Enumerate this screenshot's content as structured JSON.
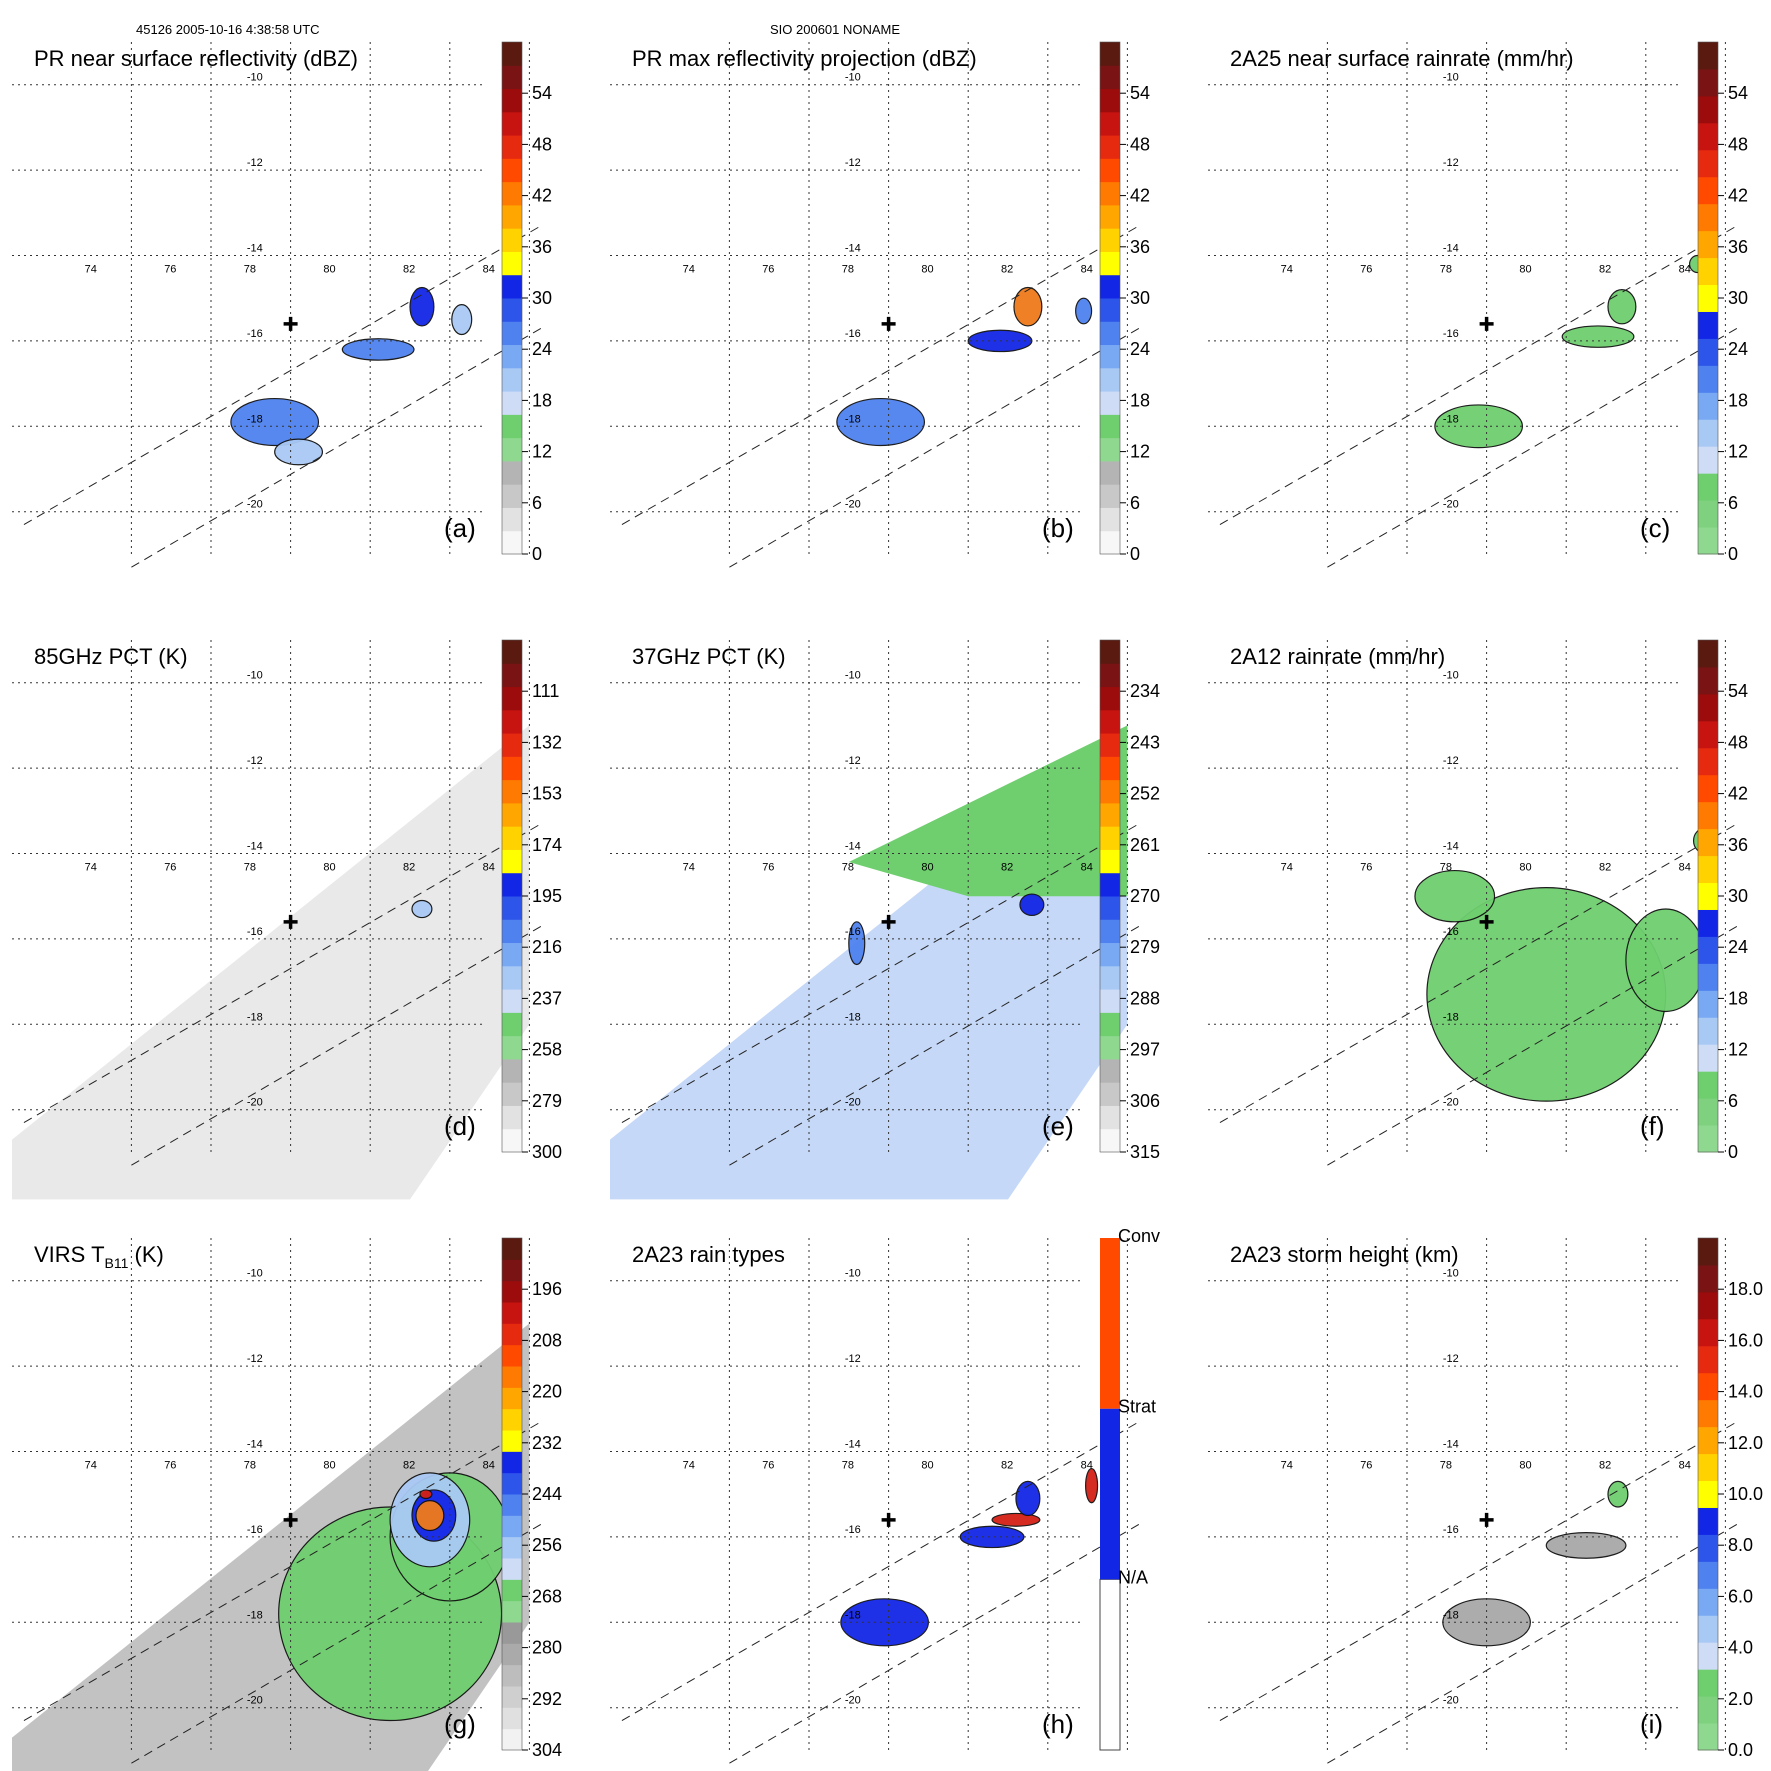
{
  "header": {
    "left": "45126 2005-10-16 4:38:58 UTC",
    "center": "SIO 200601 NONAME"
  },
  "common": {
    "lon_ticks": [
      74,
      76,
      78,
      80,
      82,
      84
    ],
    "lat_ticks": [
      -10,
      -12,
      -14,
      -16,
      -18,
      -20
    ],
    "center_marker": [
      79.0,
      -15.6
    ],
    "swath_line_1": [
      [
        72.3,
        -20.3
      ],
      [
        85.3,
        -13.3
      ]
    ],
    "swath_line_2": [
      [
        75.0,
        -21.3
      ],
      [
        85.3,
        -15.7
      ]
    ],
    "colors": {
      "green": "#6fcf6f",
      "light_blue": "#a9c9f5",
      "mid_blue": "#4f82ef",
      "blue": "#1226e6",
      "orange": "#f07a1a",
      "red": "#d42015",
      "gray": "#a8a8a8"
    }
  },
  "chart_data": [
    {
      "id": "a",
      "type": "map",
      "title": "PR near surface reflectivity (dBZ)",
      "label": "(a)",
      "colorbar": {
        "min": 0,
        "max": 60,
        "ticks": [
          "0",
          "6",
          "12",
          "18",
          "24",
          "30",
          "36",
          "42",
          "48",
          "54"
        ],
        "scheme": "refl"
      },
      "rain_areas": [
        {
          "lon": 78.6,
          "lat": -17.9,
          "rx": 1.1,
          "ry": 0.55,
          "color": "mid_blue"
        },
        {
          "lon": 79.2,
          "lat": -18.6,
          "rx": 0.6,
          "ry": 0.3,
          "color": "light_blue"
        },
        {
          "lon": 81.2,
          "lat": -16.2,
          "rx": 0.9,
          "ry": 0.25,
          "color": "mid_blue"
        },
        {
          "lon": 82.3,
          "lat": -15.2,
          "rx": 0.3,
          "ry": 0.45,
          "color": "blue"
        },
        {
          "lon": 83.3,
          "lat": -15.5,
          "rx": 0.25,
          "ry": 0.35,
          "color": "light_blue"
        }
      ]
    },
    {
      "id": "b",
      "type": "map",
      "title": "PR max reflectivity projection (dBZ)",
      "label": "(b)",
      "colorbar": {
        "min": 0,
        "max": 60,
        "ticks": [
          "0",
          "6",
          "12",
          "18",
          "24",
          "30",
          "36",
          "42",
          "48",
          "54"
        ],
        "scheme": "refl"
      },
      "rain_areas": [
        {
          "lon": 78.8,
          "lat": -17.9,
          "rx": 1.1,
          "ry": 0.55,
          "color": "mid_blue"
        },
        {
          "lon": 81.8,
          "lat": -16.0,
          "rx": 0.8,
          "ry": 0.25,
          "color": "blue"
        },
        {
          "lon": 82.5,
          "lat": -15.2,
          "rx": 0.35,
          "ry": 0.45,
          "color": "orange"
        },
        {
          "lon": 83.9,
          "lat": -15.3,
          "rx": 0.2,
          "ry": 0.3,
          "color": "mid_blue"
        }
      ]
    },
    {
      "id": "c",
      "type": "map",
      "title": "2A25 near surface rainrate (mm/hr)",
      "label": "(c)",
      "colorbar": {
        "min": 0,
        "max": 60,
        "ticks": [
          "0",
          "6",
          "12",
          "18",
          "24",
          "30",
          "36",
          "42",
          "48",
          "54"
        ],
        "scheme": "rain"
      },
      "rain_areas": [
        {
          "lon": 78.8,
          "lat": -18.0,
          "rx": 1.1,
          "ry": 0.5,
          "color": "green"
        },
        {
          "lon": 81.8,
          "lat": -15.9,
          "rx": 0.9,
          "ry": 0.25,
          "color": "green"
        },
        {
          "lon": 82.4,
          "lat": -15.2,
          "rx": 0.35,
          "ry": 0.4,
          "color": "green"
        },
        {
          "lon": 84.3,
          "lat": -14.2,
          "rx": 0.2,
          "ry": 0.2,
          "color": "green"
        }
      ]
    },
    {
      "id": "d",
      "type": "map",
      "title": "85GHz PCT (K)",
      "label": "(d)",
      "colorbar": {
        "min": 300,
        "max": 90,
        "ticks": [
          "300",
          "279",
          "258",
          "237",
          "216",
          "195",
          "174",
          "153",
          "132",
          "111"
        ],
        "scheme": "pct"
      },
      "field": "light_gray",
      "rain_areas": [
        {
          "lon": 82.3,
          "lat": -15.3,
          "rx": 0.25,
          "ry": 0.2,
          "color": "light_blue"
        }
      ]
    },
    {
      "id": "e",
      "type": "map",
      "title": "37GHz PCT (K)",
      "label": "(e)",
      "colorbar": {
        "min": 315,
        "max": 225,
        "ticks": [
          "315",
          "306",
          "297",
          "288",
          "279",
          "270",
          "261",
          "252",
          "243",
          "234"
        ],
        "scheme": "pct"
      },
      "field": "light_blue",
      "rain_areas": [
        {
          "lon": 82.6,
          "lat": -15.2,
          "rx": 0.3,
          "ry": 0.25,
          "color": "blue"
        },
        {
          "lon": 78.2,
          "lat": -16.1,
          "rx": 0.2,
          "ry": 0.5,
          "color": "mid_blue"
        }
      ]
    },
    {
      "id": "f",
      "type": "map",
      "title": "2A12 rainrate (mm/hr)",
      "label": "(f)",
      "colorbar": {
        "min": 0,
        "max": 60,
        "ticks": [
          "0",
          "6",
          "12",
          "18",
          "24",
          "30",
          "36",
          "42",
          "48",
          "54"
        ],
        "scheme": "rain"
      },
      "rain_areas": [
        {
          "lon": 80.5,
          "lat": -17.3,
          "rx": 3.0,
          "ry": 2.5,
          "color": "green"
        },
        {
          "lon": 78.2,
          "lat": -15.0,
          "rx": 1.0,
          "ry": 0.6,
          "color": "green"
        },
        {
          "lon": 83.5,
          "lat": -16.5,
          "rx": 1.0,
          "ry": 1.2,
          "color": "green"
        },
        {
          "lon": 84.5,
          "lat": -13.7,
          "rx": 0.3,
          "ry": 0.3,
          "color": "green"
        }
      ]
    },
    {
      "id": "g",
      "type": "map",
      "title": "VIRS T",
      "title_sub": "B11",
      "title_suffix": " (K)",
      "label": "(g)",
      "colorbar": {
        "min": 304,
        "max": 184,
        "ticks": [
          "304",
          "292",
          "280",
          "268",
          "256",
          "244",
          "232",
          "220",
          "208",
          "196"
        ],
        "scheme": "ir"
      },
      "field": "gray",
      "rain_areas": [
        {
          "lon": 81.5,
          "lat": -17.8,
          "rx": 2.8,
          "ry": 2.5,
          "color": "green"
        },
        {
          "lon": 83.0,
          "lat": -16.0,
          "rx": 1.5,
          "ry": 1.5,
          "color": "green"
        },
        {
          "lon": 82.5,
          "lat": -15.6,
          "rx": 1.0,
          "ry": 1.1,
          "color": "light_blue"
        },
        {
          "lon": 82.6,
          "lat": -15.5,
          "rx": 0.55,
          "ry": 0.6,
          "color": "blue"
        },
        {
          "lon": 82.5,
          "lat": -15.5,
          "rx": 0.35,
          "ry": 0.35,
          "color": "orange"
        },
        {
          "lon": 82.4,
          "lat": -15.0,
          "rx": 0.15,
          "ry": 0.1,
          "color": "red"
        }
      ]
    },
    {
      "id": "h",
      "type": "map",
      "title": "2A23 rain types",
      "label": "(h)",
      "colorbar": {
        "categorical": true,
        "labels": [
          "N/A",
          "Strat",
          "Conv"
        ],
        "scheme": "types"
      },
      "rain_areas": [
        {
          "lon": 78.9,
          "lat": -18.0,
          "rx": 1.1,
          "ry": 0.55,
          "color": "blue"
        },
        {
          "lon": 81.6,
          "lat": -16.0,
          "rx": 0.8,
          "ry": 0.25,
          "color": "blue"
        },
        {
          "lon": 82.2,
          "lat": -15.6,
          "rx": 0.6,
          "ry": 0.15,
          "color": "red"
        },
        {
          "lon": 82.5,
          "lat": -15.1,
          "rx": 0.3,
          "ry": 0.4,
          "color": "blue"
        },
        {
          "lon": 84.1,
          "lat": -14.8,
          "rx": 0.15,
          "ry": 0.4,
          "color": "red"
        }
      ]
    },
    {
      "id": "i",
      "type": "map",
      "title": "2A23 storm height (km)",
      "label": "(i)",
      "colorbar": {
        "min": 0,
        "max": 20,
        "ticks": [
          "0.0",
          "2.0",
          "4.0",
          "6.0",
          "8.0",
          "10.0",
          "12.0",
          "14.0",
          "16.0",
          "18.0"
        ],
        "scheme": "rain"
      },
      "rain_areas": [
        {
          "lon": 79.0,
          "lat": -18.0,
          "rx": 1.1,
          "ry": 0.55,
          "color": "gray"
        },
        {
          "lon": 81.5,
          "lat": -16.2,
          "rx": 1.0,
          "ry": 0.3,
          "color": "gray"
        },
        {
          "lon": 82.3,
          "lat": -15.0,
          "rx": 0.25,
          "ry": 0.3,
          "color": "green"
        }
      ]
    }
  ]
}
